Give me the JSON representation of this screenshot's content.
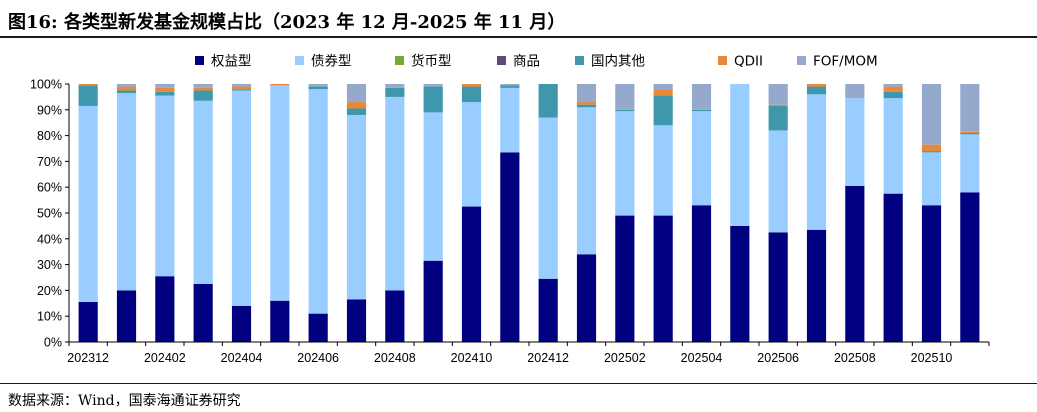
{
  "figure": {
    "title": "图16: 各类型新发基金规模占比（2023 年 12 月-2025 年 11 月）",
    "source": "数据来源：Wind，国泰海通证券研究"
  },
  "chart_data": {
    "type": "bar",
    "stacked": true,
    "percent": true,
    "categories": [
      "202312",
      "202401",
      "202402",
      "202403",
      "202404",
      "202405",
      "202406",
      "202407",
      "202408",
      "202409",
      "202410",
      "202411",
      "202412",
      "202501",
      "202502",
      "202503",
      "202504",
      "202505",
      "202506",
      "202507",
      "202508",
      "202509",
      "202510",
      "202511"
    ],
    "x_tick_labels": [
      "202312",
      "202402",
      "202404",
      "202406",
      "202408",
      "202410",
      "202412",
      "202502",
      "202504",
      "202506",
      "202508",
      "202510"
    ],
    "y_ticks": [
      "0%",
      "10%",
      "20%",
      "30%",
      "40%",
      "50%",
      "60%",
      "70%",
      "80%",
      "90%",
      "100%"
    ],
    "ylim": [
      0,
      100
    ],
    "legend_position": "top",
    "grid": false,
    "series": [
      {
        "name": "权益型",
        "color": "#000080",
        "values": [
          15.5,
          20,
          25.5,
          22.5,
          14,
          16,
          11,
          16.5,
          20,
          31.5,
          52.5,
          73.5,
          24.5,
          34,
          49,
          49,
          53,
          45,
          42.5,
          43.5,
          60.5,
          57.5,
          53,
          58
        ]
      },
      {
        "name": "债券型",
        "color": "#99CCFF",
        "values": [
          76,
          76.5,
          70,
          71,
          83.5,
          83.5,
          87,
          71.5,
          75,
          57.5,
          40.5,
          25,
          62.5,
          57,
          40.5,
          35,
          36.5,
          55,
          39.5,
          52.5,
          34,
          37,
          20.5,
          22.5
        ]
      },
      {
        "name": "货币型",
        "color": "#77AA33",
        "values": [
          0,
          0,
          0,
          0,
          0,
          0,
          0,
          0,
          0,
          0,
          0,
          0,
          0,
          0,
          0,
          0,
          0,
          0,
          0,
          0,
          0,
          0,
          0,
          0
        ]
      },
      {
        "name": "商品",
        "color": "#604A7B",
        "values": [
          0,
          0,
          0,
          0,
          0,
          0,
          0,
          0,
          0,
          0,
          0,
          0,
          0,
          0,
          0,
          0,
          0,
          0,
          0,
          0,
          0,
          0,
          0,
          0
        ]
      },
      {
        "name": "国内其他",
        "color": "#3E97AA",
        "values": [
          8,
          1,
          1.5,
          4,
          0.5,
          0,
          1,
          2.5,
          3.5,
          10,
          6,
          1,
          13,
          1,
          0.5,
          11.5,
          0.5,
          0,
          9.5,
          3,
          0,
          2.5,
          0.5,
          0.5
        ]
      },
      {
        "name": "QDII",
        "color": "#E8893A",
        "values": [
          0.5,
          1.5,
          1.5,
          1,
          1,
          0.5,
          0,
          2.5,
          0,
          0,
          1,
          0,
          0,
          1,
          0,
          2.5,
          0,
          0,
          0.5,
          1,
          0,
          2,
          2.5,
          0.5
        ]
      },
      {
        "name": "FOF/MOM",
        "color": "#95A9CD",
        "values": [
          0,
          1,
          1.5,
          1.5,
          1,
          0,
          1,
          7,
          1.5,
          1,
          0,
          0.5,
          0,
          7,
          10,
          2,
          10,
          0,
          8,
          0,
          5.5,
          1,
          23.5,
          18.5
        ]
      }
    ]
  }
}
